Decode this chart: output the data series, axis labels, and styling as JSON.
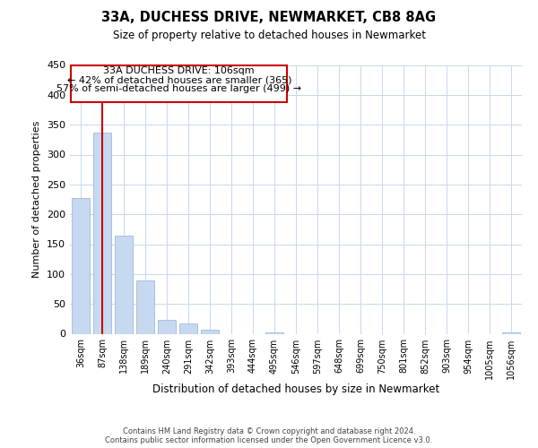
{
  "title": "33A, DUCHESS DRIVE, NEWMARKET, CB8 8AG",
  "subtitle": "Size of property relative to detached houses in Newmarket",
  "xlabel": "Distribution of detached houses by size in Newmarket",
  "ylabel": "Number of detached properties",
  "bin_labels": [
    "36sqm",
    "87sqm",
    "138sqm",
    "189sqm",
    "240sqm",
    "291sqm",
    "342sqm",
    "393sqm",
    "444sqm",
    "495sqm",
    "546sqm",
    "597sqm",
    "648sqm",
    "699sqm",
    "750sqm",
    "801sqm",
    "852sqm",
    "903sqm",
    "954sqm",
    "1005sqm",
    "1056sqm"
  ],
  "bar_heights": [
    227,
    337,
    165,
    89,
    23,
    18,
    7,
    0,
    0,
    2,
    0,
    0,
    0,
    0,
    0,
    0,
    0,
    0,
    0,
    0,
    3
  ],
  "bar_color": "#c6d9f0",
  "bar_edge_color": "#a0b8d8",
  "ylim": [
    0,
    450
  ],
  "yticks": [
    0,
    50,
    100,
    150,
    200,
    250,
    300,
    350,
    400,
    450
  ],
  "property_line_color": "#cc0000",
  "annotation_title": "33A DUCHESS DRIVE: 106sqm",
  "annotation_line1": "← 42% of detached houses are smaller (365)",
  "annotation_line2": "57% of semi-detached houses are larger (499) →",
  "annotation_box_color": "#cc0000",
  "footer_line1": "Contains HM Land Registry data © Crown copyright and database right 2024.",
  "footer_line2": "Contains public sector information licensed under the Open Government Licence v3.0.",
  "background_color": "#ffffff",
  "grid_color": "#c8d8ec"
}
